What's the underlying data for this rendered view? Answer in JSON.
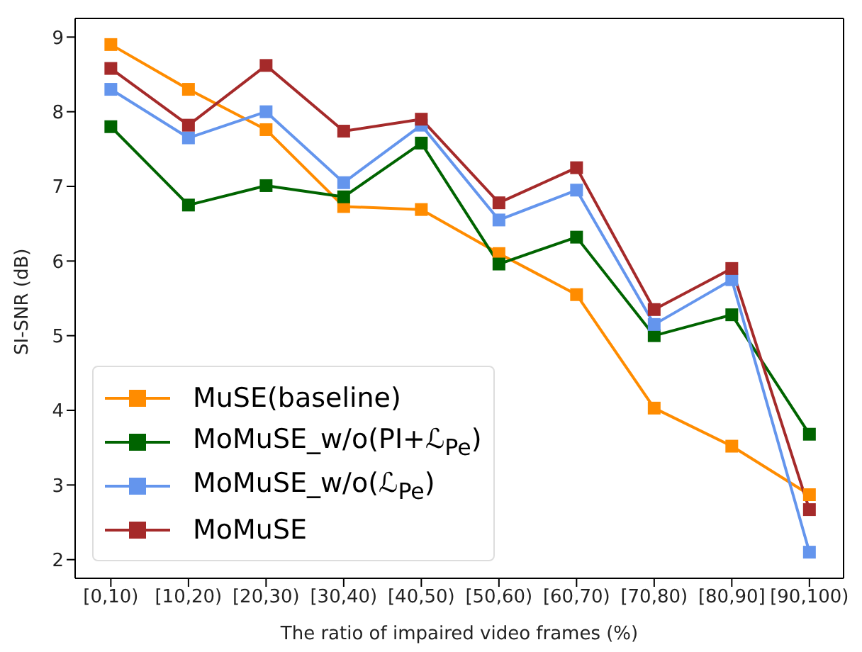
{
  "chart_data": {
    "type": "line",
    "xlabel": "The ratio of impaired video frames (%)",
    "ylabel": "SI-SNR (dB)",
    "categories": [
      "[0,10)",
      "[10,20)",
      "[20,30)",
      "[30,40)",
      "[40,50)",
      "[50,60)",
      "[60,70)",
      "[70,80)",
      "[80,90]",
      "[90,100)"
    ],
    "series": [
      {
        "name": "MuSE(baseline)",
        "color": "#ff8c00",
        "values": [
          8.9,
          8.3,
          7.76,
          6.73,
          6.69,
          6.1,
          5.55,
          4.03,
          3.52,
          2.87
        ]
      },
      {
        "name": "MoMuSE_w/o(PI+ℒ$_{Pe}$)",
        "color": "#006400",
        "values": [
          7.8,
          6.75,
          7.01,
          6.86,
          7.58,
          5.96,
          6.32,
          5.0,
          5.28,
          3.68
        ]
      },
      {
        "name": "MoMuSE_w/o(ℒ$_{Pe}$)",
        "color": "#6495ed",
        "values": [
          8.3,
          7.65,
          8.0,
          7.05,
          7.82,
          6.55,
          6.95,
          5.15,
          5.75,
          2.1
        ]
      },
      {
        "name": "MoMuSE",
        "color": "#a52a2a",
        "values": [
          8.58,
          7.82,
          8.62,
          7.74,
          7.9,
          6.78,
          7.25,
          5.35,
          5.9,
          2.67
        ]
      }
    ],
    "ylim": [
      1.75,
      9.25
    ],
    "yticks": [
      2,
      3,
      4,
      5,
      6,
      7,
      8,
      9
    ],
    "grid": false,
    "legend": "bottom left",
    "marker": "square",
    "line_style": "solid"
  }
}
